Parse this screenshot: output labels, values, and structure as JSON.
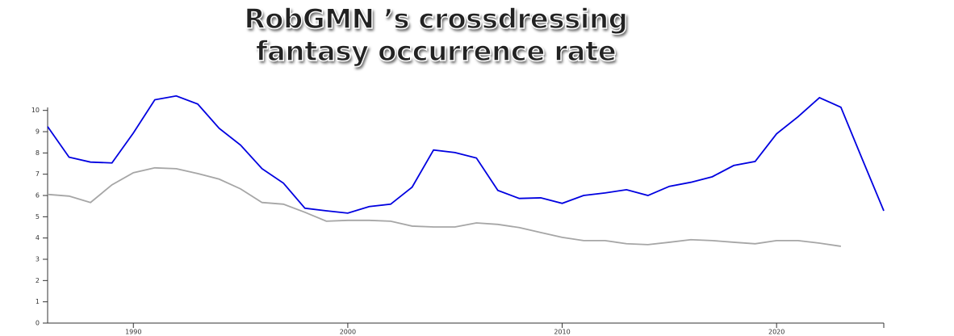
{
  "chart_data": {
    "type": "line",
    "title": "RobGMN ’s crossdressing fantasy occurrence rate",
    "x": [
      1986,
      1987,
      1988,
      1989,
      1990,
      1991,
      1992,
      1993,
      1994,
      1995,
      1996,
      1997,
      1998,
      1999,
      2000,
      2001,
      2002,
      2003,
      2004,
      2005,
      2006,
      2007,
      2008,
      2009,
      2010,
      2011,
      2012,
      2013,
      2014,
      2015,
      2016,
      2017,
      2018,
      2019,
      2020,
      2021,
      2022,
      2023,
      2024,
      2025
    ],
    "series": [
      {
        "color": "#0000e0",
        "values": [
          9.24,
          7.8,
          7.57,
          7.53,
          8.94,
          10.5,
          10.68,
          10.3,
          9.16,
          8.37,
          7.26,
          6.58,
          5.4,
          5.28,
          5.17,
          5.48,
          5.59,
          6.39,
          8.14,
          8.02,
          7.76,
          6.24,
          5.86,
          5.89,
          5.63,
          6.0,
          6.12,
          6.27,
          6.0,
          6.43,
          6.62,
          6.88,
          7.41,
          7.6,
          8.9,
          9.7,
          10.6,
          10.15,
          7.7,
          5.28
        ]
      },
      {
        "color": "#a6a6a6",
        "values": [
          6.05,
          5.97,
          5.67,
          6.5,
          7.07,
          7.3,
          7.26,
          7.03,
          6.77,
          6.31,
          5.67,
          5.59,
          5.21,
          4.79,
          4.83,
          4.83,
          4.79,
          4.56,
          4.52,
          4.52,
          4.71,
          4.64,
          4.49,
          4.26,
          4.03,
          3.88,
          3.88,
          3.73,
          3.69,
          3.8,
          3.92,
          3.88,
          3.8,
          3.73,
          3.88,
          3.88,
          3.76,
          3.61,
          null,
          null
        ]
      }
    ],
    "xlim": [
      1986,
      2025
    ],
    "xticks": [
      1990,
      2000,
      2010,
      2020
    ],
    "ylim": [
      0,
      10.9
    ],
    "yticks": [
      0,
      1,
      2,
      3,
      4,
      5,
      6,
      7,
      8,
      9,
      10
    ]
  }
}
